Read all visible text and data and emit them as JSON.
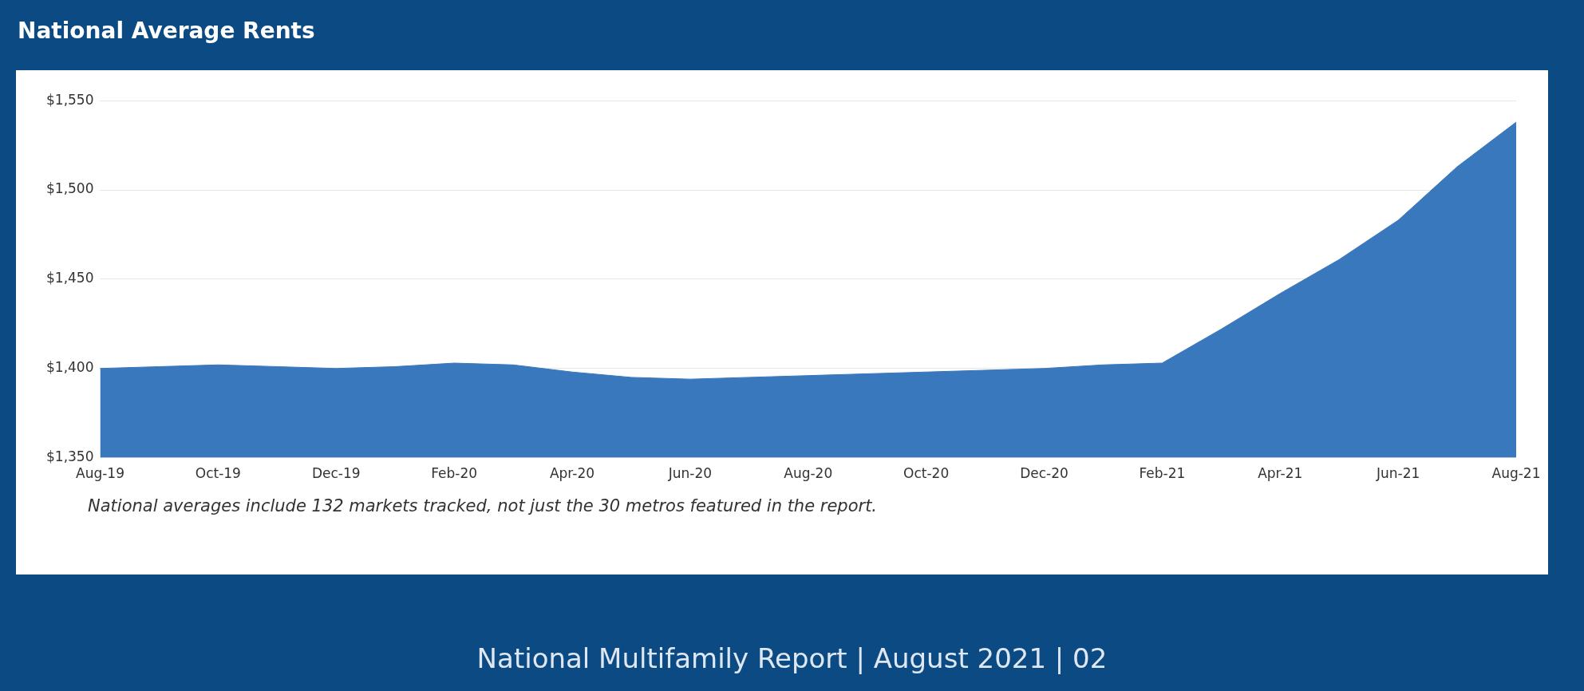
{
  "chart_data": {
    "type": "area",
    "title": "National Average Rents",
    "categories": [
      "Aug-19",
      null,
      "Oct-19",
      null,
      "Dec-19",
      null,
      "Feb-20",
      null,
      "Apr-20",
      null,
      "Jun-20",
      null,
      "Aug-20",
      null,
      "Oct-20",
      null,
      "Dec-20",
      null,
      "Feb-21",
      null,
      "Apr-21",
      null,
      "Jun-21",
      null,
      "Aug-21"
    ],
    "values": [
      1400,
      1401,
      1402,
      1401,
      1400,
      1401,
      1403,
      1402,
      1398,
      1395,
      1394,
      1395,
      1396,
      1397,
      1398,
      1399,
      1400,
      1402,
      1403,
      1422,
      1442,
      1461,
      1483,
      1513,
      1538
    ],
    "color": "#3a78bd",
    "ylim": [
      1350,
      1550
    ],
    "yticks": [
      {
        "value": 1350,
        "label": "$1,350"
      },
      {
        "value": 1400,
        "label": "$1,400"
      },
      {
        "value": 1450,
        "label": "$1,450"
      },
      {
        "value": 1500,
        "label": "$1,500"
      },
      {
        "value": 1550,
        "label": "$1,550"
      }
    ],
    "grid": "y",
    "annotations": [
      "National averages include 132 markets tracked, not just the 30 metros featured in the report.",
      "National Multifamily Report  |  August 2021  |  02"
    ]
  }
}
